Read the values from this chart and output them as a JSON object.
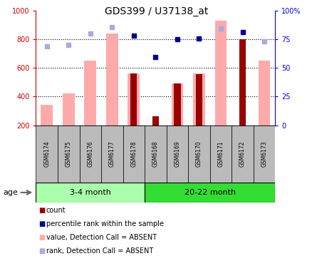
{
  "title": "GDS399 / U37138_at",
  "samples": [
    "GSM6174",
    "GSM6175",
    "GSM6176",
    "GSM6177",
    "GSM6178",
    "GSM6168",
    "GSM6169",
    "GSM6170",
    "GSM6171",
    "GSM6172",
    "GSM6173"
  ],
  "n_group1": 5,
  "n_group2": 6,
  "group1_label": "3-4 month",
  "group2_label": "20-22 month",
  "age_label": "age",
  "ymin": 200,
  "ymax": 1000,
  "yticks_left": [
    200,
    400,
    600,
    800,
    1000
  ],
  "ytick_labels_left": [
    "200",
    "400",
    "600",
    "800",
    "1000"
  ],
  "yticks_right_pct": [
    0,
    25,
    50,
    75,
    100
  ],
  "ytick_labels_right": [
    "0",
    "25",
    "50",
    "75",
    "100%"
  ],
  "gridlines": [
    400,
    600,
    800
  ],
  "pink_bar_values": [
    340,
    420,
    650,
    840,
    560,
    null,
    490,
    560,
    930,
    null,
    650
  ],
  "red_bar_values": [
    null,
    null,
    null,
    null,
    560,
    265,
    490,
    555,
    null,
    800,
    null
  ],
  "blue_sq_y": [
    null,
    null,
    null,
    null,
    825,
    675,
    800,
    805,
    null,
    850,
    null
  ],
  "lb_sq_y": [
    750,
    760,
    840,
    885,
    null,
    null,
    null,
    null,
    875,
    null,
    785
  ],
  "colors": {
    "red_bar": "#990000",
    "pink_bar": "#FFAAAA",
    "blue_sq": "#000099",
    "lb_sq": "#AAAADD",
    "group1_bg": "#AAFFAA",
    "group2_bg": "#33DD33",
    "tick_bg": "#BBBBBB",
    "left_tick": "#CC0000",
    "right_tick": "#0000CC",
    "grid": "#000000"
  },
  "legend": [
    {
      "label": "count",
      "color": "#990000"
    },
    {
      "label": "percentile rank within the sample",
      "color": "#000099"
    },
    {
      "label": "value, Detection Call = ABSENT",
      "color": "#FFAAAA"
    },
    {
      "label": "rank, Detection Call = ABSENT",
      "color": "#AAAADD"
    }
  ]
}
